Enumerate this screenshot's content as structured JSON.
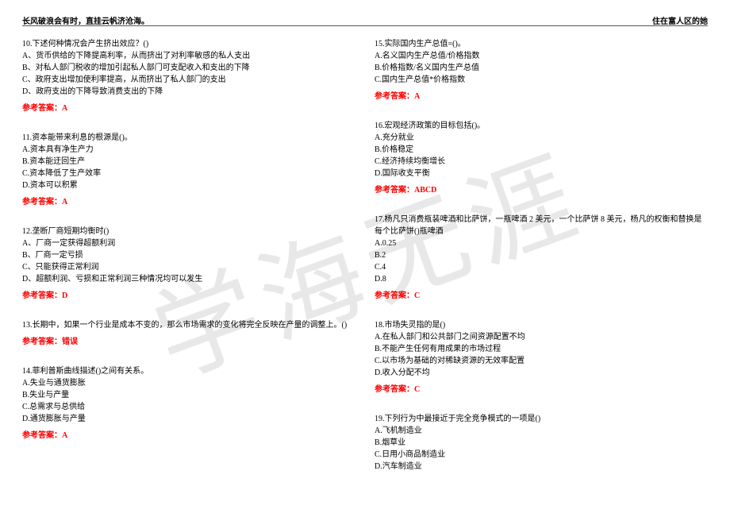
{
  "header": {
    "left": "长风破浪会有时，直挂云帆济沧海。",
    "right": "住在富人区的她"
  },
  "watermark": "学海无涯",
  "left_col": [
    {
      "stem": "10.下述何种情况会产生挤出效应？()",
      "options": [
        "A、货币供给的下降提高利率，从而挤出了对利率敏感的私人支出",
        "B、对私人部门税收的增加引起私人部门可支配收入和支出的下降",
        "C、政府支出增加使利率提高，从而挤出了私人部门的支出",
        "D、政府支出的下降导致消费支出的下降"
      ],
      "answer": "参考答案：A"
    },
    {
      "stem": "11.资本能带来利息的根源是()。",
      "options": [
        "A.资本具有净生产力",
        "B.资本能迂回生产",
        "C.资本降低了生产效率",
        "D.资本可以积累"
      ],
      "answer": "参考答案：A"
    },
    {
      "stem": "12.垄断厂商短期均衡时()",
      "options": [
        "A、厂商一定获得超额利润",
        "B、厂商一定亏损",
        "C、只能获得正常利润",
        "D、超额利润、亏损和正常利润三种情况均可以发生"
      ],
      "answer": "参考答案：D"
    },
    {
      "stem": "13.长期中，如果一个行业是成本不变的，那么市场需求的变化将完全反映在产量的调整上。()",
      "options": [],
      "answer": "参考答案：错误"
    },
    {
      "stem": "14.菲利普斯曲线描述()之间有关系。",
      "options": [
        "A.失业与通货膨胀",
        "B.失业与产量",
        "C.总需求与总供给",
        "D.通货膨胀与产量"
      ],
      "answer": "参考答案：A"
    }
  ],
  "right_col": [
    {
      "stem": "15.实际国内生产总值=()。",
      "options": [
        "A.名义国内生产总值/价格指数",
        "B.价格指数/名义国内生产总值",
        "C.国内生产总值*价格指数"
      ],
      "answer": "参考答案：A"
    },
    {
      "stem": "16.宏观经济政策的目标包括()。",
      "options": [
        "A.充分就业",
        "B.价格稳定",
        "C.经济持续均衡增长",
        "D.国际收支平衡"
      ],
      "answer": "参考答案：ABCD"
    },
    {
      "stem": "17.杨凡只消费瓶装啤酒和比萨饼，一瓶啤酒 2 美元，一个比萨饼 8 美元，杨凡的权衡和替换是每个比萨饼()瓶啤酒",
      "options": [
        "A.0.25",
        "B.2",
        "C.4",
        "D.8"
      ],
      "answer": "参考答案：C"
    },
    {
      "stem": "18.市场失灵指的是()",
      "options": [
        "A.在私人部门和公共部门之间资源配置不均",
        "B.不能产生任何有用成果的市场过程",
        "C.以市场为基础的对稀缺资源的无效率配置",
        "D.收入分配不均"
      ],
      "answer": "参考答案：C"
    },
    {
      "stem": "19.下列行为中最接近于完全竞争模式的一项是()",
      "options": [
        "A.飞机制造业",
        "B.烟草业",
        "C.日用小商品制造业",
        "D.汽车制造业"
      ],
      "answer": ""
    }
  ]
}
